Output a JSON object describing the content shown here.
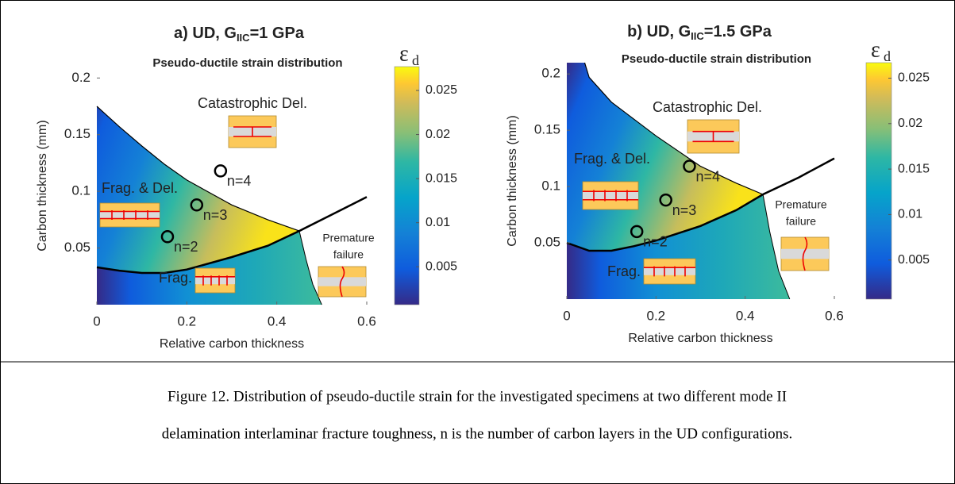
{
  "figure": {
    "panels": [
      {
        "title": {
          "prefix": "a) UD, G",
          "subscript": "IIC",
          "suffix": "=1 GPa"
        },
        "plot_title": "Pseudo-ductile strain distribution",
        "xlabel": "Relative carbon thickness",
        "ylabel": "Carbon thickness (mm)",
        "xlim": [
          0,
          0.6
        ],
        "ylim": [
          0,
          0.21
        ],
        "xticks": [
          0,
          0.2,
          0.4,
          0.6
        ],
        "yticks": [
          0.05,
          0.1,
          0.15,
          0.2
        ],
        "colorbar": {
          "symbol": "ε",
          "subscript": "d",
          "lim": [
            0.0007,
            0.0277
          ],
          "ticks": [
            0.005,
            0.01,
            0.015,
            0.02,
            0.025
          ]
        },
        "regions": {
          "catastrophic": "Catastrophic Del.",
          "frag_del": "Frag. & Del.",
          "frag": "Frag.",
          "premature": [
            "Premature",
            "failure"
          ]
        },
        "points": [
          {
            "label": "n=2",
            "x": 0.157,
            "y": 0.06
          },
          {
            "label": "n=3",
            "x": 0.222,
            "y": 0.088
          },
          {
            "label": "n=4",
            "x": 0.275,
            "y": 0.118
          }
        ]
      },
      {
        "title": {
          "prefix": "b) UD, G",
          "subscript": "IIC",
          "suffix": "=1.5 GPa"
        },
        "plot_title": "Pseudo-ductile strain distribution",
        "xlabel": "Relative carbon thickness",
        "ylabel": "Carbon thickness (mm)",
        "xlim": [
          0,
          0.6
        ],
        "ylim": [
          0,
          0.21
        ],
        "xticks": [
          0,
          0.2,
          0.4,
          0.6
        ],
        "yticks": [
          0.05,
          0.1,
          0.15,
          0.2
        ],
        "colorbar": {
          "symbol": "ε",
          "subscript": "d",
          "lim": [
            0.0007,
            0.0267
          ],
          "ticks": [
            0.005,
            0.01,
            0.015,
            0.02,
            0.025
          ]
        },
        "regions": {
          "catastrophic": "Catastrophic Del.",
          "frag_del": "Frag. & Del.",
          "frag": "Frag.",
          "premature": [
            "Premature",
            "failure"
          ]
        },
        "points": [
          {
            "label": "n=2",
            "x": 0.157,
            "y": 0.06
          },
          {
            "label": "n=3",
            "x": 0.222,
            "y": 0.088
          },
          {
            "label": "n=4",
            "x": 0.275,
            "y": 0.118
          }
        ]
      }
    ],
    "caption": [
      "Figure 12. Distribution of pseudo-ductile strain for the investigated specimens at two different mode II",
      "delamination interlaminar fracture toughness, n is the number of carbon layers in the UD configurations."
    ]
  }
}
